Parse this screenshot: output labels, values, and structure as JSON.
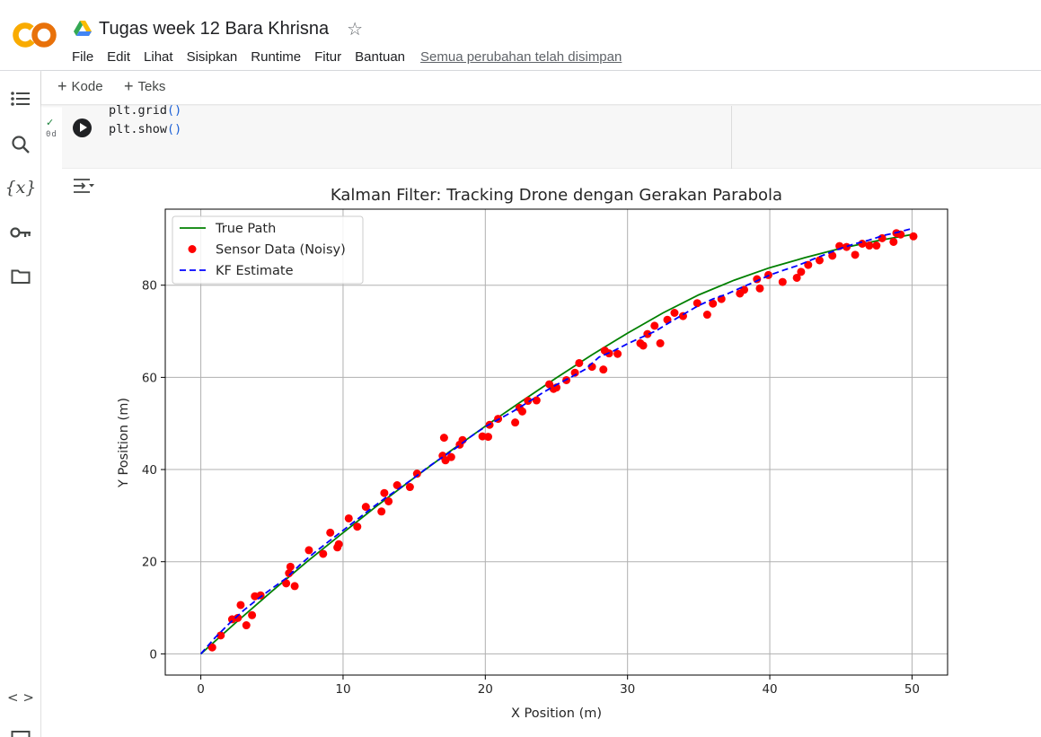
{
  "header": {
    "logo_text": "CO",
    "doc_title": "Tugas week 12 Bara Khrisna",
    "menu": [
      "File",
      "Edit",
      "Lihat",
      "Sisipkan",
      "Runtime",
      "Fitur",
      "Bantuan"
    ],
    "save_status": "Semua perubahan telah disimpan"
  },
  "toolbar": {
    "code_label": "Kode",
    "text_label": "Teks"
  },
  "cell": {
    "status": "✓",
    "exec_time": "0d",
    "code_lines": [
      {
        "name": "plt.grid",
        "paren": "()"
      },
      {
        "name": "plt.show",
        "paren": "()"
      }
    ]
  },
  "icons": {
    "rail": [
      "toc-icon",
      "search-icon",
      "variables-icon",
      "key-icon",
      "folder-icon",
      "code-snippets-icon"
    ],
    "colors": {
      "true_path": "#008000",
      "sensor": "#ff0000",
      "kf": "#0000ff"
    }
  },
  "chart_data": {
    "type": "line",
    "title": "Kalman Filter: Tracking Drone dengan Gerakan Parabola",
    "xlabel": "X Position (m)",
    "ylabel": "Y Position (m)",
    "xlim": [
      -2.5,
      52.5
    ],
    "ylim": [
      -4.6,
      96.5
    ],
    "xticks": [
      0,
      10,
      20,
      30,
      40,
      50
    ],
    "yticks": [
      0,
      20,
      40,
      60,
      80
    ],
    "grid": true,
    "legend_position": "upper left",
    "series": [
      {
        "name": "True Path",
        "style": "solid",
        "color": "#008000",
        "x": [
          0,
          2.5,
          5,
          7.5,
          10,
          12.5,
          15,
          17.5,
          20,
          22.5,
          25,
          27.5,
          30,
          32.5,
          35,
          37.5,
          40,
          42.5,
          45,
          47.5,
          50
        ],
        "y": [
          0,
          6.9,
          13.6,
          20.1,
          26.3,
          32.4,
          38.2,
          43.9,
          49.4,
          54.7,
          59.9,
          64.9,
          69.6,
          74.0,
          77.9,
          81.1,
          83.8,
          86.0,
          88.0,
          89.6,
          91.0
        ]
      },
      {
        "name": "KF Estimate",
        "style": "dashed",
        "color": "#0000ff",
        "x": [
          0,
          1,
          2,
          3,
          4,
          5,
          6,
          7,
          8,
          9,
          10,
          11,
          12,
          13,
          14,
          15,
          16,
          17,
          18,
          19,
          20,
          21,
          22,
          23,
          24,
          25,
          26,
          27,
          28,
          29,
          30,
          31,
          32,
          33,
          34,
          35,
          36,
          37,
          38,
          39,
          40,
          41,
          42,
          43,
          44,
          45,
          46,
          47,
          48,
          49,
          50
        ],
        "y": [
          0,
          3.5,
          6.6,
          9.4,
          11.9,
          14.2,
          16.4,
          19.4,
          22.0,
          24.4,
          26.8,
          29.2,
          31.6,
          33.9,
          36.0,
          38.2,
          40.6,
          42.7,
          44.8,
          47.2,
          49.3,
          51.0,
          52.7,
          54.6,
          56.6,
          58.4,
          60.0,
          61.7,
          64.4,
          65.7,
          67.3,
          68.7,
          70.1,
          72.0,
          73.8,
          75.6,
          77.0,
          78.1,
          79.5,
          80.8,
          82.2,
          83.3,
          84.3,
          85.6,
          86.8,
          88.0,
          89.0,
          89.8,
          90.8,
          91.5,
          92.3
        ]
      },
      {
        "name": "Sensor Data (Noisy)",
        "style": "scatter",
        "color": "#ff0000",
        "x": [
          0.8,
          1.4,
          2.2,
          2.6,
          2.8,
          3.2,
          3.6,
          3.8,
          4.2,
          6.0,
          6.2,
          6.3,
          6.6,
          7.6,
          8.6,
          9.1,
          9.6,
          9.7,
          10.4,
          11.0,
          11.6,
          12.7,
          12.9,
          13.2,
          13.8,
          14.7,
          15.2,
          17.0,
          17.1,
          17.2,
          17.6,
          18.2,
          18.4,
          19.8,
          20.2,
          20.3,
          20.9,
          22.1,
          22.4,
          22.6,
          23.0,
          23.6,
          24.5,
          24.8,
          25.0,
          25.7,
          26.3,
          26.6,
          27.5,
          28.3,
          28.4,
          28.7,
          29.3,
          30.9,
          31.1,
          31.4,
          31.9,
          32.3,
          32.8,
          33.3,
          33.9,
          34.9,
          35.6,
          36.0,
          36.6,
          37.9,
          38.2,
          39.1,
          39.3,
          39.9,
          40.9,
          41.9,
          42.2,
          42.7,
          43.5,
          44.4,
          44.9,
          45.4,
          46.0,
          46.5,
          47.0,
          47.5,
          47.9,
          48.7,
          48.9,
          49.2,
          50.1
        ],
        "y": [
          1.4,
          4.0,
          7.5,
          7.8,
          10.6,
          6.2,
          8.4,
          12.5,
          12.7,
          15.3,
          17.5,
          18.9,
          14.7,
          22.5,
          21.7,
          26.3,
          23.1,
          23.8,
          29.4,
          27.6,
          31.9,
          30.9,
          34.9,
          33.1,
          36.6,
          36.2,
          39.1,
          43.0,
          46.9,
          42.0,
          42.7,
          45.4,
          46.4,
          47.2,
          47.1,
          49.7,
          51.0,
          50.2,
          53.4,
          52.6,
          54.9,
          55.0,
          58.5,
          57.5,
          57.8,
          59.4,
          61.0,
          63.1,
          62.3,
          61.7,
          65.8,
          65.2,
          65.1,
          67.4,
          66.9,
          69.4,
          71.2,
          67.4,
          72.5,
          74.0,
          73.3,
          76.1,
          73.6,
          76.0,
          77.0,
          78.2,
          79.0,
          81.3,
          79.3,
          82.2,
          80.7,
          81.6,
          82.9,
          84.4,
          85.4,
          86.4,
          88.5,
          88.3,
          86.6,
          89.0,
          88.6,
          88.6,
          90.2,
          89.4,
          91.3,
          91.0,
          90.6
        ]
      }
    ]
  }
}
